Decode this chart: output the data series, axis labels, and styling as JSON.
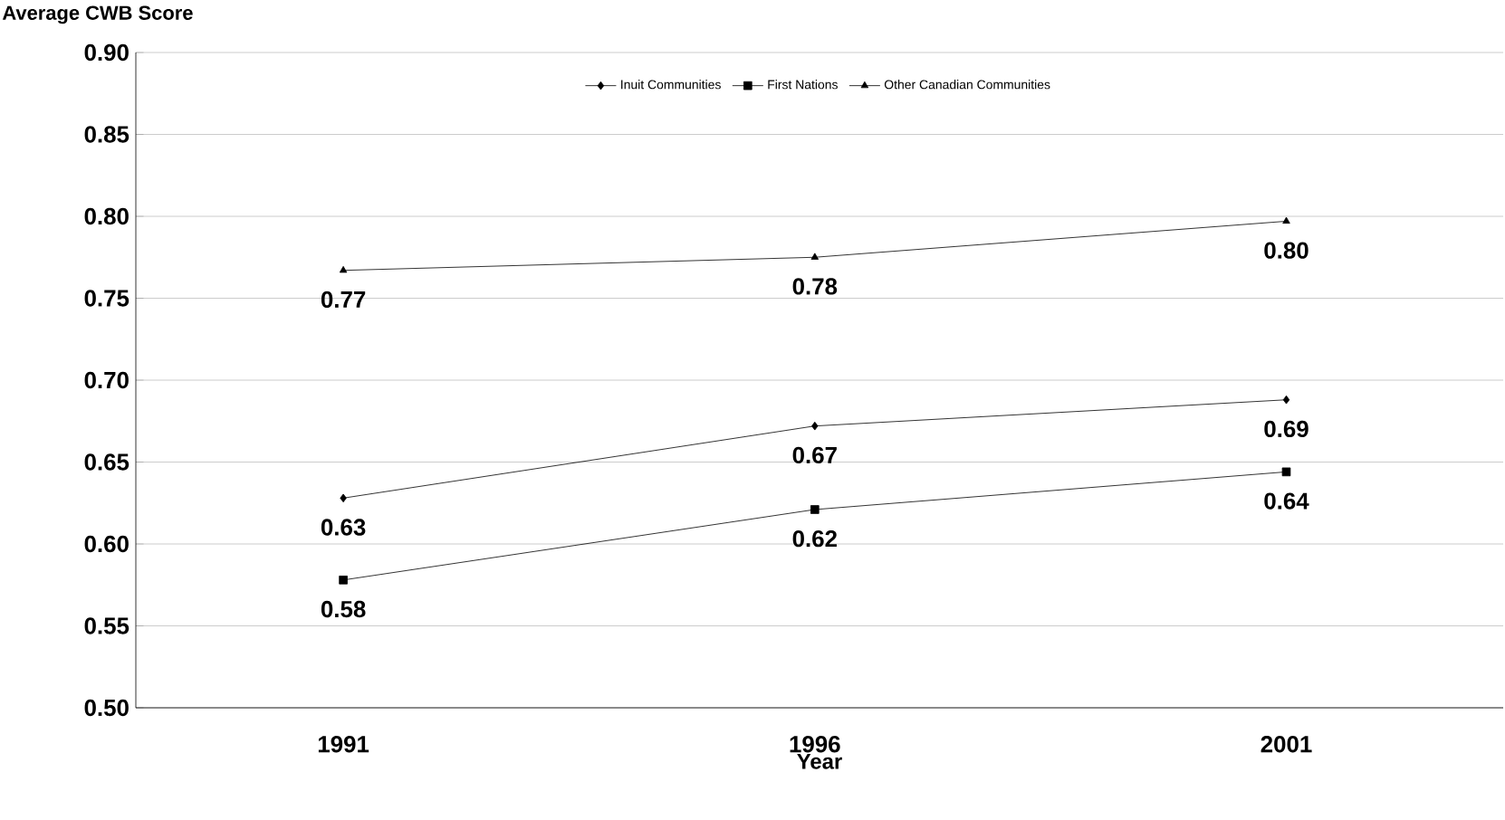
{
  "chart_data": {
    "type": "line",
    "title": "Average CWB Score",
    "xlabel": "Year",
    "categories": [
      "1991",
      "1996",
      "2001"
    ],
    "series": [
      {
        "name": "Inuit Communities",
        "color": "#000000",
        "marker": "diamond",
        "values": [
          0.628,
          0.672,
          0.688
        ],
        "value_labels": [
          "0.63",
          "0.67",
          "0.69"
        ]
      },
      {
        "name": "First Nations",
        "color": "#000000",
        "marker": "square",
        "values": [
          0.578,
          0.621,
          0.644
        ],
        "value_labels": [
          "0.58",
          "0.62",
          "0.64"
        ]
      },
      {
        "name": "Other Canadian Communities",
        "color": "#000000",
        "marker": "triangle",
        "values": [
          0.767,
          0.775,
          0.797
        ],
        "value_labels": [
          "0.77",
          "0.78",
          "0.80"
        ]
      }
    ],
    "ylim": [
      0.5,
      0.9
    ],
    "yticks": [
      {
        "value": 0.5,
        "label": "0.50"
      },
      {
        "value": 0.55,
        "label": "0.55"
      },
      {
        "value": 0.6,
        "label": "0.60"
      },
      {
        "value": 0.65,
        "label": "0.65"
      },
      {
        "value": 0.7,
        "label": "0.70"
      },
      {
        "value": 0.75,
        "label": "0.75"
      },
      {
        "value": 0.8,
        "label": "0.80"
      },
      {
        "value": 0.85,
        "label": "0.85"
      },
      {
        "value": 0.9,
        "label": "0.90"
      }
    ],
    "grid": "y",
    "legend": "top"
  }
}
